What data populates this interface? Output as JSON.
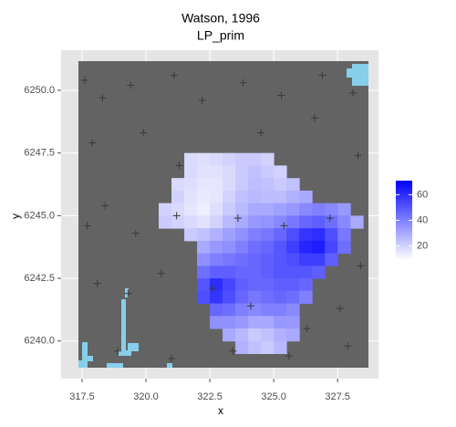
{
  "chart_data": {
    "type": "raster",
    "title": "Watson, 1996",
    "subtitle": "LP_prim",
    "x_label": "x",
    "y_label": "y",
    "xlim": [
      316.68,
      329.1
    ],
    "ylim": [
      6238.5,
      6251.6
    ],
    "xticks": [
      {
        "value": 317.5,
        "label": "317.5"
      },
      {
        "value": 320,
        "label": "320.0"
      },
      {
        "value": 322.5,
        "label": "322.5"
      },
      {
        "value": 325,
        "label": "325.0"
      },
      {
        "value": 327.5,
        "label": "327.5"
      }
    ],
    "yticks": [
      {
        "value": 6240,
        "label": "6240.0"
      },
      {
        "value": 6242.5,
        "label": "6242.5"
      },
      {
        "value": 6245,
        "label": "6245.0"
      },
      {
        "value": 6247.5,
        "label": "6247.5"
      },
      {
        "value": 6250,
        "label": "6250.0"
      }
    ],
    "grid": true,
    "x": [
      320.75,
      321.25,
      321.75,
      322.25,
      322.75,
      323.25,
      323.75,
      324.25,
      324.75,
      325.25,
      325.75,
      326.25,
      326.75,
      327.25,
      327.75,
      328.25
    ],
    "y": [
      6247.25,
      6246.75,
      6246.25,
      6245.75,
      6245.25,
      6244.75,
      6244.25,
      6243.75,
      6243.25,
      6242.75,
      6242.25,
      6241.75,
      6241.25,
      6240.75,
      6240.25,
      6239.75
    ],
    "values": [
      [
        null,
        null,
        18,
        17,
        18,
        20,
        22,
        22,
        20,
        null,
        null,
        null,
        null,
        null,
        null,
        null
      ],
      [
        null,
        null,
        18,
        16,
        16,
        18,
        22,
        24,
        22,
        20,
        null,
        null,
        null,
        null,
        null,
        null
      ],
      [
        null,
        18,
        17,
        15,
        15,
        18,
        22,
        25,
        24,
        22,
        24,
        null,
        null,
        null,
        null,
        null
      ],
      [
        null,
        20,
        16,
        14,
        15,
        20,
        24,
        26,
        25,
        25,
        28,
        30,
        null,
        null,
        null,
        null
      ],
      [
        20,
        18,
        15,
        13,
        17,
        22,
        26,
        30,
        30,
        32,
        34,
        38,
        40,
        38,
        34,
        null
      ],
      [
        22,
        20,
        18,
        16,
        20,
        26,
        30,
        34,
        35,
        38,
        42,
        46,
        48,
        44,
        38,
        30
      ],
      [
        null,
        null,
        22,
        24,
        28,
        32,
        36,
        40,
        42,
        46,
        52,
        58,
        60,
        52,
        42,
        null
      ],
      [
        null,
        null,
        null,
        30,
        34,
        36,
        40,
        44,
        46,
        50,
        56,
        62,
        64,
        54,
        44,
        null
      ],
      [
        null,
        null,
        null,
        36,
        40,
        42,
        44,
        46,
        48,
        50,
        52,
        56,
        56,
        48,
        null,
        null
      ],
      [
        null,
        null,
        null,
        44,
        48,
        48,
        46,
        46,
        48,
        50,
        50,
        50,
        48,
        null,
        null,
        null
      ],
      [
        null,
        null,
        null,
        50,
        60,
        54,
        48,
        46,
        46,
        48,
        48,
        46,
        null,
        null,
        null,
        null
      ],
      [
        null,
        null,
        null,
        52,
        58,
        52,
        46,
        42,
        44,
        46,
        44,
        40,
        null,
        null,
        null,
        null
      ],
      [
        null,
        null,
        null,
        null,
        46,
        44,
        40,
        38,
        40,
        40,
        38,
        null,
        null,
        null,
        null,
        null
      ],
      [
        null,
        null,
        null,
        null,
        36,
        36,
        34,
        30,
        30,
        34,
        34,
        null,
        null,
        null,
        null,
        null
      ],
      [
        null,
        null,
        null,
        null,
        null,
        30,
        26,
        22,
        24,
        28,
        30,
        null,
        null,
        null,
        null,
        null
      ],
      [
        null,
        null,
        null,
        null,
        null,
        null,
        28,
        24,
        22,
        26,
        null,
        null,
        null,
        null,
        null,
        null
      ]
    ],
    "colors": [
      "#ffffff",
      "#0000ff"
    ],
    "clim": [
      9,
      71
    ],
    "cticks": [
      20,
      40,
      60
    ],
    "points": {
      "color": "#3a3a3a",
      "x": [
        317.6,
        318.3,
        319.4,
        321.1,
        322.2,
        323.8,
        325.3,
        326.9,
        328.1,
        317.9,
        319.9,
        321.3,
        324.5,
        326.6,
        328.3,
        318.4,
        319.6,
        321.2,
        323.6,
        325.4,
        327.2,
        318.1,
        319.3,
        320.6,
        322.6,
        324.1,
        326.3,
        327.6,
        318.9,
        321.0,
        323.4,
        325.6,
        327.9,
        317.7,
        328.4
      ],
      "y": [
        6250.4,
        6249.7,
        6250.2,
        6250.6,
        6249.6,
        6250.3,
        6249.8,
        6250.6,
        6249.9,
        6247.9,
        6248.3,
        6247.0,
        6248.3,
        6248.9,
        6247.4,
        6245.4,
        6244.3,
        6245.0,
        6244.9,
        6244.6,
        6244.9,
        6242.3,
        6241.9,
        6242.7,
        6242.1,
        6241.4,
        6240.5,
        6241.3,
        6239.6,
        6239.3,
        6239.6,
        6239.4,
        6239.8,
        6244.6,
        6243.0
      ]
    }
  }
}
